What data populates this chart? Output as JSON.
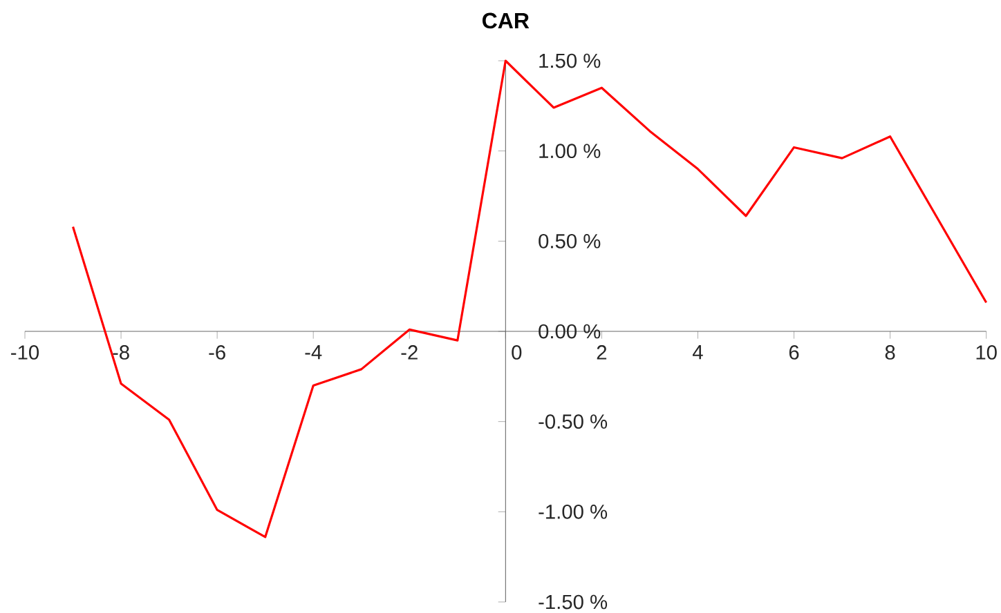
{
  "chart_data": {
    "type": "line",
    "title": "CAR",
    "x": [
      -9,
      -8,
      -7,
      -6,
      -5,
      -4,
      -3,
      -2,
      -1,
      0,
      1,
      2,
      3,
      4,
      5,
      6,
      7,
      8,
      9,
      10
    ],
    "series": [
      {
        "color": "#ff0000",
        "values": [
          0.58,
          -0.29,
          -0.49,
          -0.99,
          -1.14,
          -0.3,
          -0.21,
          0.01,
          -0.05,
          1.5,
          1.24,
          1.35,
          1.11,
          0.9,
          0.64,
          1.02,
          0.96,
          1.08,
          0.62,
          0.16
        ]
      }
    ],
    "xlim": [
      -10,
      10
    ],
    "ylim": [
      -1.5,
      1.5
    ],
    "xticks": [
      -10,
      -8,
      -6,
      -4,
      -2,
      0,
      2,
      4,
      6,
      8,
      10
    ],
    "yticks": [
      {
        "value": -1.5,
        "label": "-1.50 %"
      },
      {
        "value": -1.0,
        "label": "-1.00 %"
      },
      {
        "value": -0.5,
        "label": "-0.50 %"
      },
      {
        "value": 0.0,
        "label": "0.00 %"
      },
      {
        "value": 0.5,
        "label": "0.50 %"
      },
      {
        "value": 1.0,
        "label": "1.00 %"
      },
      {
        "value": 1.5,
        "label": "1.50 %"
      }
    ],
    "grid": false,
    "legend": false,
    "marker": "none",
    "line_style": "solid"
  }
}
